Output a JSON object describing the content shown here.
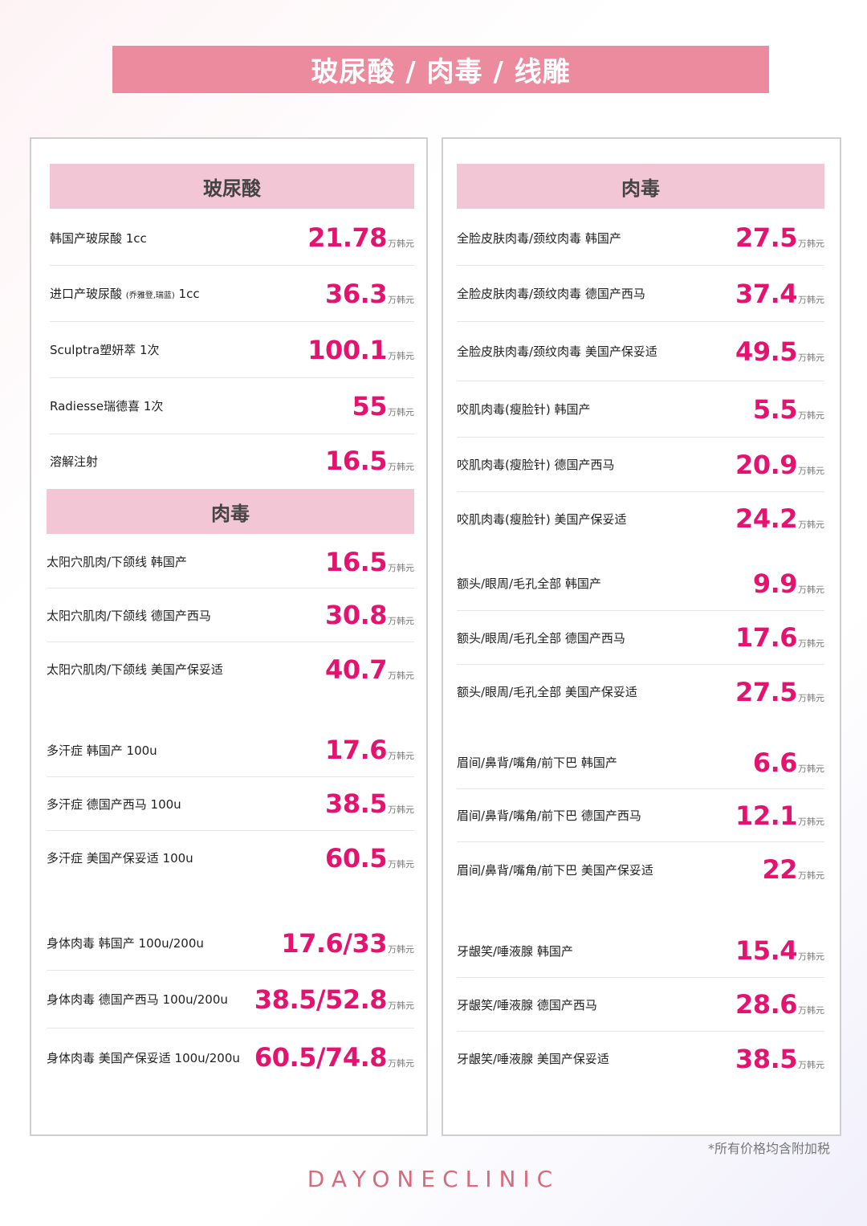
{
  "page_title": "玻尿酸 / 肉毒 / 线雕",
  "unit": "万韩元",
  "left": {
    "section1_title": "玻尿酸",
    "section1_items": [
      {
        "label": "韩国产玻尿酸 1cc",
        "price": "21.78"
      },
      {
        "label": "进口产玻尿酸",
        "label_note": "(乔雅登,瑞蓝)",
        "label_suffix": " 1cc",
        "price": "36.3"
      },
      {
        "label": "Sculptra塑妍萃 1次",
        "price": "100.1"
      },
      {
        "label": "Radiesse瑞德喜 1次",
        "price": "55"
      },
      {
        "label": "溶解注射",
        "price": "16.5"
      }
    ],
    "section2_title": "肉毒",
    "section2_items": [
      {
        "label": "太阳穴肌肉/下颌线 韩国产",
        "price": "16.5"
      },
      {
        "label": "太阳穴肌肉/下颌线 德国产西马",
        "price": "30.8"
      },
      {
        "label": "太阳穴肌肉/下颌线 美国产保妥适",
        "price": "40.7"
      },
      {
        "label": "多汗症 韩国产 100u",
        "price": "17.6"
      },
      {
        "label": "多汗症 德国产西马 100u",
        "price": "38.5"
      },
      {
        "label": "多汗症 美国产保妥适 100u",
        "price": "60.5"
      },
      {
        "label": "身体肉毒 韩国产 100u/200u",
        "price": "17.6/33"
      },
      {
        "label": "身体肉毒 德国产西马 100u/200u",
        "price": "38.5/52.8"
      },
      {
        "label": "身体肉毒 美国产保妥适 100u/200u",
        "price": "60.5/74.8"
      }
    ]
  },
  "right": {
    "section_title": "肉毒",
    "items": [
      {
        "label": "全脸皮肤肉毒/颈纹肉毒 韩国产",
        "price": "27.5"
      },
      {
        "label": "全脸皮肤肉毒/颈纹肉毒 德国产西马",
        "price": "37.4"
      },
      {
        "label": "全脸皮肤肉毒/颈纹肉毒 美国产保妥适",
        "price": "49.5"
      },
      {
        "label": "咬肌肉毒(瘦脸针) 韩国产",
        "price": "5.5"
      },
      {
        "label": "咬肌肉毒(瘦脸针) 德国产西马",
        "price": "20.9"
      },
      {
        "label": "咬肌肉毒(瘦脸针) 美国产保妥适",
        "price": "24.2"
      },
      {
        "label": "额头/眼周/毛孔全部 韩国产",
        "price": "9.9"
      },
      {
        "label": "额头/眼周/毛孔全部 德国产西马",
        "price": "17.6"
      },
      {
        "label": "额头/眼周/毛孔全部 美国产保妥适",
        "price": "27.5"
      },
      {
        "label": "眉间/鼻背/嘴角/前下巴 韩国产",
        "price": "6.6"
      },
      {
        "label": "眉间/鼻背/嘴角/前下巴 德国产西马",
        "price": "12.1"
      },
      {
        "label": "眉间/鼻背/嘴角/前下巴 美国产保妥适",
        "price": "22"
      },
      {
        "label": "牙龈笑/唾液腺 韩国产",
        "price": "15.4"
      },
      {
        "label": "牙龈笑/唾液腺 德国产西马",
        "price": "28.6"
      },
      {
        "label": "牙龈笑/唾液腺 美国产保妥适",
        "price": "38.5"
      }
    ]
  },
  "footnote": "*所有价格均含附加税",
  "logo": "DAYONECLINIC",
  "colors": {
    "title_bg": "#ec8a9e",
    "section_bg": "#f3c6d6",
    "price": "#e5136f",
    "logo": "#d66b7d"
  }
}
